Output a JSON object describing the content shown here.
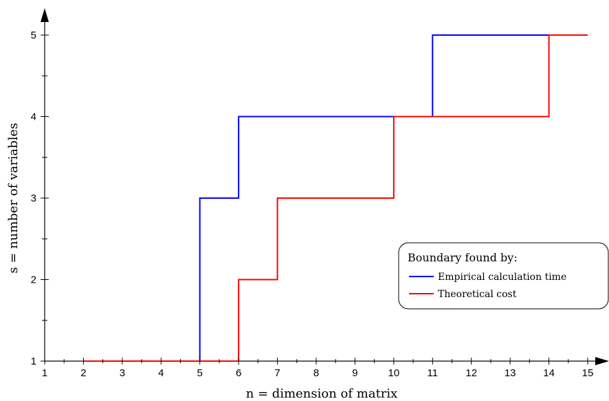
{
  "chart_data": {
    "type": "line",
    "step": true,
    "xlabel": "n = dimension of matrix",
    "ylabel": "s = number of variables",
    "xlim": [
      1,
      15
    ],
    "ylim": [
      1,
      5
    ],
    "x_ticks": [
      1,
      2,
      3,
      4,
      5,
      6,
      7,
      8,
      9,
      10,
      11,
      12,
      13,
      14,
      15
    ],
    "y_ticks": [
      1,
      2,
      3,
      4,
      5
    ],
    "grid": false,
    "legend": {
      "title": "Boundary found by:",
      "position": "right"
    },
    "series": [
      {
        "name": "Empirical calculation time",
        "color": "#0000ff",
        "x": [
          2,
          5,
          5,
          6,
          6,
          11,
          11,
          15
        ],
        "y": [
          1,
          1,
          3,
          3,
          4,
          4,
          5,
          5
        ]
      },
      {
        "name": "Theoretical cost",
        "color": "#ff0000",
        "x": [
          2,
          6,
          6,
          7,
          7,
          10,
          10,
          14,
          14,
          15
        ],
        "y": [
          1,
          1,
          2,
          2,
          3,
          3,
          4,
          4,
          5,
          5
        ]
      }
    ]
  }
}
